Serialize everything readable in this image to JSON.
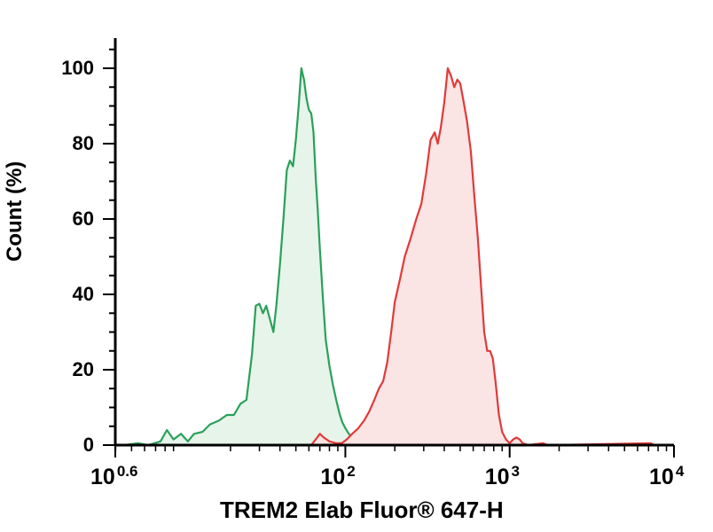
{
  "chart_data": {
    "type": "area",
    "title": "",
    "xlabel": "TREM2 Elab Fluor® 647-H",
    "ylabel": "Count (%)",
    "x_scale": "log",
    "xlim": [
      3.98,
      10000
    ],
    "ylim": [
      0,
      108
    ],
    "x_ticks": [
      {
        "base": "10",
        "exp": "0.6",
        "value": 3.98
      },
      {
        "base": "10",
        "exp": "2",
        "value": 100
      },
      {
        "base": "10",
        "exp": "3",
        "value": 1000
      },
      {
        "base": "10",
        "exp": "4",
        "value": 10000
      }
    ],
    "y_ticks": [
      0,
      20,
      40,
      60,
      80,
      100
    ],
    "grid": false,
    "legend": "none",
    "series": [
      {
        "color": "#2aa05a",
        "fill": "#e6f4ea",
        "points": [
          [
            4.5,
            0
          ],
          [
            5.5,
            0.5
          ],
          [
            6.3,
            0
          ],
          [
            7.5,
            1
          ],
          [
            8.2,
            4
          ],
          [
            9.0,
            1.5
          ],
          [
            10,
            3
          ],
          [
            11,
            1
          ],
          [
            12,
            3
          ],
          [
            13.5,
            3.5
          ],
          [
            15,
            5.5
          ],
          [
            17,
            6.5
          ],
          [
            19,
            8
          ],
          [
            21,
            8
          ],
          [
            23,
            11
          ],
          [
            25,
            12
          ],
          [
            27,
            24
          ],
          [
            28.5,
            37
          ],
          [
            30,
            37.5
          ],
          [
            31.5,
            35
          ],
          [
            33,
            37
          ],
          [
            35,
            33
          ],
          [
            36.5,
            30
          ],
          [
            38,
            37
          ],
          [
            40,
            48
          ],
          [
            42,
            60
          ],
          [
            44,
            73
          ],
          [
            46,
            75.5
          ],
          [
            48,
            74
          ],
          [
            50,
            81
          ],
          [
            52,
            90
          ],
          [
            54,
            100
          ],
          [
            56,
            97
          ],
          [
            58,
            92
          ],
          [
            60,
            89
          ],
          [
            62,
            88
          ],
          [
            64,
            83
          ],
          [
            66,
            71
          ],
          [
            68,
            62
          ],
          [
            70,
            52
          ],
          [
            73,
            39
          ],
          [
            76,
            28
          ],
          [
            80,
            21
          ],
          [
            84,
            16
          ],
          [
            88,
            12
          ],
          [
            92,
            8.5
          ],
          [
            96,
            6
          ],
          [
            100,
            4.5
          ],
          [
            105,
            3
          ],
          [
            110,
            2
          ],
          [
            115,
            1.5
          ],
          [
            120,
            1
          ],
          [
            130,
            0.5
          ],
          [
            140,
            0
          ],
          [
            230,
            0.5
          ],
          [
            240,
            0
          ]
        ]
      },
      {
        "color": "#e03a3a",
        "fill": "#fbe4e4",
        "points": [
          [
            62,
            0
          ],
          [
            66,
            1.5
          ],
          [
            70,
            3
          ],
          [
            74,
            2
          ],
          [
            80,
            1
          ],
          [
            88,
            0.5
          ],
          [
            95,
            0.5
          ],
          [
            102,
            1.5
          ],
          [
            110,
            3
          ],
          [
            120,
            4.5
          ],
          [
            130,
            6.5
          ],
          [
            140,
            9
          ],
          [
            150,
            12
          ],
          [
            160,
            15
          ],
          [
            170,
            17
          ],
          [
            180,
            22
          ],
          [
            190,
            30
          ],
          [
            200,
            38
          ],
          [
            215,
            44
          ],
          [
            230,
            50
          ],
          [
            250,
            55
          ],
          [
            270,
            60
          ],
          [
            290,
            64
          ],
          [
            310,
            72
          ],
          [
            330,
            81
          ],
          [
            350,
            83
          ],
          [
            365,
            80
          ],
          [
            380,
            84
          ],
          [
            400,
            91
          ],
          [
            420,
            100
          ],
          [
            440,
            98
          ],
          [
            460,
            95
          ],
          [
            480,
            97
          ],
          [
            500,
            96
          ],
          [
            520,
            92
          ],
          [
            550,
            86
          ],
          [
            580,
            78
          ],
          [
            610,
            66
          ],
          [
            640,
            55
          ],
          [
            670,
            42
          ],
          [
            700,
            30
          ],
          [
            730,
            25
          ],
          [
            760,
            25
          ],
          [
            790,
            23
          ],
          [
            820,
            17
          ],
          [
            860,
            8
          ],
          [
            900,
            3.5
          ],
          [
            950,
            1.5
          ],
          [
            1000,
            0.5
          ],
          [
            1050,
            1.5
          ],
          [
            1100,
            2
          ],
          [
            1150,
            1.5
          ],
          [
            1200,
            0.5
          ],
          [
            1300,
            0
          ],
          [
            1600,
            0.5
          ],
          [
            1700,
            0
          ],
          [
            7200,
            0.5
          ],
          [
            7600,
            0
          ]
        ]
      }
    ]
  }
}
